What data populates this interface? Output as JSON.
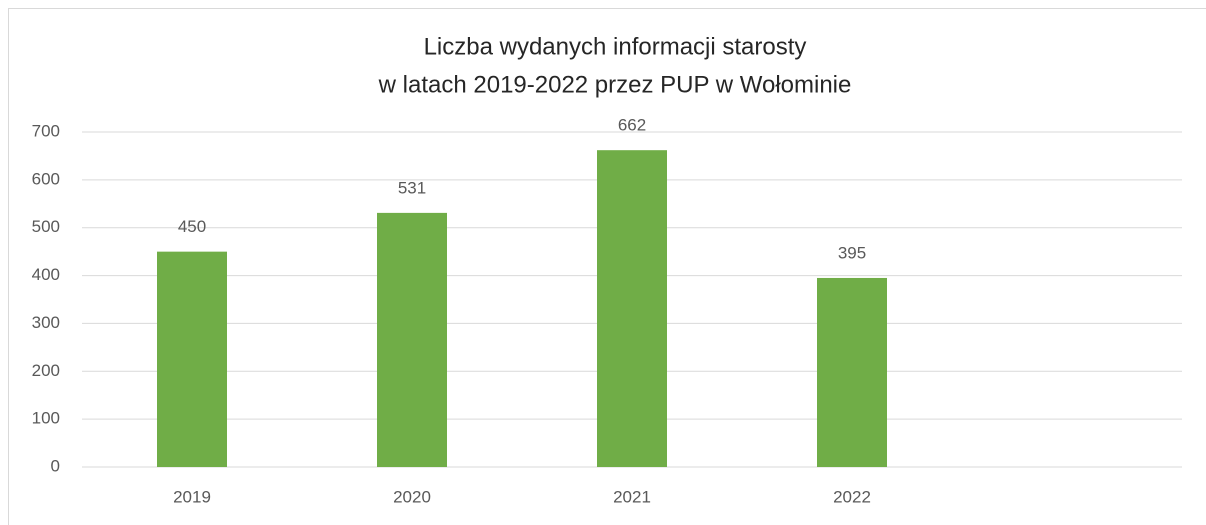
{
  "chart_data": {
    "type": "bar",
    "title": [
      "Liczba wydanych informacji starosty",
      "w latach 2019-2022 przez PUP w Wołominie"
    ],
    "categories": [
      "2019",
      "2020",
      "2021",
      "2022",
      null
    ],
    "values": [
      450,
      531,
      662,
      395,
      null
    ],
    "color": "#70ad47",
    "ylim": [
      0,
      700
    ],
    "yticks": [
      0,
      100,
      200,
      300,
      400,
      500,
      600,
      700
    ],
    "grid": true
  }
}
